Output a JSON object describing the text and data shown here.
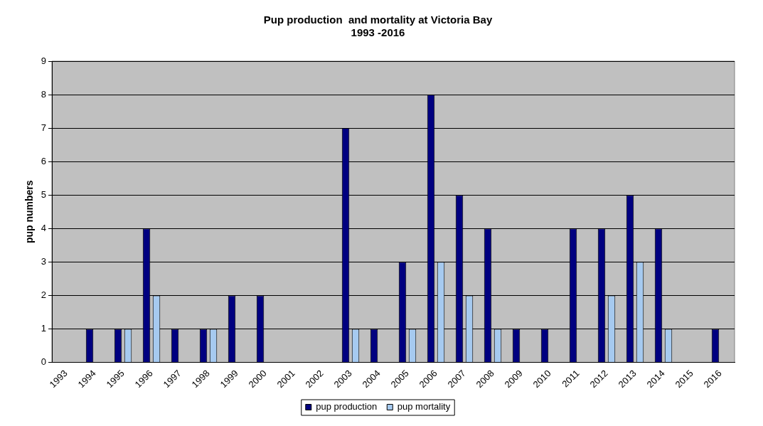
{
  "chart_data": {
    "type": "bar",
    "title": "Pup production  and mortality at Victoria Bay\n1993 -2016",
    "ylabel": "pup numbers",
    "categories": [
      "1993",
      "1994",
      "1995",
      "1996",
      "1997",
      "1998",
      "1999",
      "2000",
      "2001",
      "2002",
      "2003",
      "2004",
      "2005",
      "2006",
      "2007",
      "2008",
      "2009",
      "2010",
      "2011",
      "2012",
      "2013",
      "2014",
      "2015",
      "2016"
    ],
    "series": [
      {
        "name": "pup production",
        "color": "#000080",
        "values": [
          0,
          1,
          1,
          4,
          1,
          1,
          2,
          2,
          0,
          0,
          7,
          1,
          3,
          8,
          5,
          4,
          1,
          1,
          4,
          4,
          5,
          4,
          0,
          1
        ]
      },
      {
        "name": "pup mortality",
        "color": "#a6caf0",
        "values": [
          0,
          0,
          1,
          2,
          0,
          1,
          0,
          0,
          0,
          0,
          1,
          0,
          1,
          3,
          2,
          1,
          0,
          0,
          0,
          2,
          3,
          1,
          0,
          0
        ]
      }
    ],
    "ylim": [
      0,
      9
    ],
    "yticks": [
      0,
      1,
      2,
      3,
      4,
      5,
      6,
      7,
      8,
      9
    ],
    "grid": "y",
    "legend": "bottom"
  }
}
